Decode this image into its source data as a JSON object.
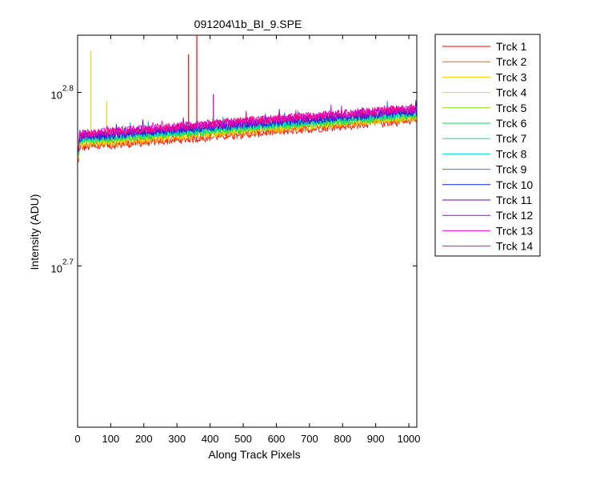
{
  "chart_data": {
    "type": "line",
    "title": "091204\\1b_BI_9.SPE",
    "xlabel": "Along Track Pixels",
    "ylabel": "Intensity (ADU)",
    "x_ticks": [
      "0",
      "100",
      "200",
      "300",
      "400",
      "500",
      "600",
      "700",
      "800",
      "900",
      "1000"
    ],
    "y_ticks": [
      {
        "base": "10",
        "exp": "2.7"
      },
      {
        "base": "10",
        "exp": "2.8"
      }
    ],
    "yscale": "log",
    "xlim": [
      0,
      1024
    ],
    "ylim_log10": [
      2.607,
      2.833
    ],
    "grid": false,
    "legend_position": "outside-right",
    "series": [
      {
        "name": "Trck 1",
        "color": "#FF0000",
        "start": 2.768,
        "end": 2.784,
        "spikes": [
          {
            "x": 335,
            "y": 2.822
          },
          {
            "x": 360,
            "y": 2.84
          }
        ]
      },
      {
        "name": "Trck 2",
        "color": "#FF5A00",
        "start": 2.769,
        "end": 2.785,
        "spikes": []
      },
      {
        "name": "Trck 3",
        "color": "#FFC800",
        "start": 2.77,
        "end": 2.786,
        "spikes": [
          {
            "x": 40,
            "y": 2.824
          }
        ]
      },
      {
        "name": "Trck 4",
        "color": "#D2E600",
        "start": 2.771,
        "end": 2.786,
        "spikes": [
          {
            "x": 88,
            "y": 2.795
          }
        ]
      },
      {
        "name": "Trck 5",
        "color": "#78E600",
        "start": 2.772,
        "end": 2.787,
        "spikes": []
      },
      {
        "name": "Trck 6",
        "color": "#00E650",
        "start": 2.772,
        "end": 2.787,
        "spikes": []
      },
      {
        "name": "Trck 7",
        "color": "#00E6A0",
        "start": 2.773,
        "end": 2.788,
        "spikes": []
      },
      {
        "name": "Trck 8",
        "color": "#00D2D2",
        "start": 2.773,
        "end": 2.788,
        "spikes": []
      },
      {
        "name": "Trck 9",
        "color": "#0096C8",
        "start": 2.774,
        "end": 2.789,
        "spikes": []
      },
      {
        "name": "Trck 10",
        "color": "#0028DC",
        "start": 2.774,
        "end": 2.789,
        "spikes": []
      },
      {
        "name": "Trck 11",
        "color": "#5A00C8",
        "start": 2.775,
        "end": 2.79,
        "spikes": []
      },
      {
        "name": "Trck 12",
        "color": "#A000DC",
        "start": 2.775,
        "end": 2.79,
        "spikes": [
          {
            "x": 410,
            "y": 2.799
          }
        ]
      },
      {
        "name": "Trck 13",
        "color": "#E600E6",
        "start": 2.776,
        "end": 2.791,
        "spikes": []
      },
      {
        "name": "Trck 14",
        "color": "#FF0078",
        "start": 2.776,
        "end": 2.791,
        "spikes": []
      }
    ]
  }
}
